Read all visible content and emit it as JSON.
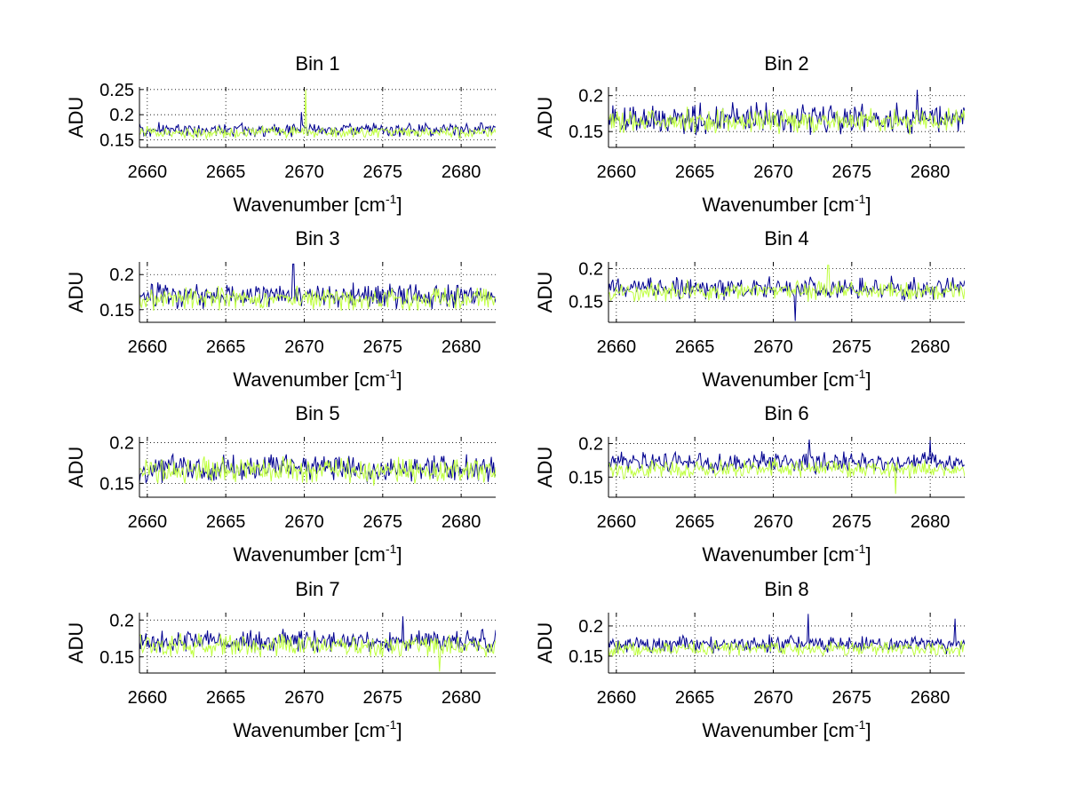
{
  "chart_data": [
    {
      "type": "line",
      "title": "Bin 1",
      "xlabel": "Wavenumber [cm",
      "xlabel_sup": "-1",
      "xlabel_end": "]",
      "ylabel": "ADU",
      "xlim": [
        2659.5,
        2682.2
      ],
      "ylim": [
        0.135,
        0.255
      ],
      "xticks": [
        2660,
        2665,
        2670,
        2675,
        2680
      ],
      "xtick_labels": [
        "2660",
        "2665",
        "2670",
        "2675",
        "2680"
      ],
      "yticks": [
        0.15,
        0.2,
        0.25
      ],
      "ytick_labels": [
        "0.15",
        "0.2",
        "0.25"
      ],
      "grid": true,
      "series": [
        {
          "name": "blue",
          "color": "#00008f",
          "mean": 0.17,
          "amplitude": 0.013,
          "spikes": [
            [
              2669.8,
              0.205
            ]
          ]
        },
        {
          "name": "green",
          "color": "#bfff3f",
          "mean": 0.165,
          "amplitude": 0.011,
          "spikes": [
            [
              2670.1,
              0.25
            ]
          ]
        }
      ]
    },
    {
      "type": "line",
      "title": "Bin 2",
      "xlabel": "Wavenumber [cm",
      "xlabel_sup": "-1",
      "xlabel_end": "]",
      "ylabel": "ADU",
      "xlim": [
        2659.5,
        2682.2
      ],
      "ylim": [
        0.128,
        0.212
      ],
      "xticks": [
        2660,
        2665,
        2670,
        2675,
        2680
      ],
      "xtick_labels": [
        "2660",
        "2665",
        "2670",
        "2675",
        "2680"
      ],
      "yticks": [
        0.15,
        0.2
      ],
      "ytick_labels": [
        "0.15",
        "0.2"
      ],
      "grid": true,
      "series": [
        {
          "name": "blue",
          "color": "#00008f",
          "mean": 0.168,
          "amplitude": 0.02,
          "spikes": [
            [
              2679.2,
              0.208
            ]
          ]
        },
        {
          "name": "green",
          "color": "#bfff3f",
          "mean": 0.165,
          "amplitude": 0.017,
          "spikes": []
        }
      ]
    },
    {
      "type": "line",
      "title": "Bin 3",
      "xlabel": "Wavenumber [cm",
      "xlabel_sup": "-1",
      "xlabel_end": "]",
      "ylabel": "ADU",
      "xlim": [
        2659.5,
        2682.2
      ],
      "ylim": [
        0.132,
        0.218
      ],
      "xticks": [
        2660,
        2665,
        2670,
        2675,
        2680
      ],
      "xtick_labels": [
        "2660",
        "2665",
        "2670",
        "2675",
        "2680"
      ],
      "yticks": [
        0.15,
        0.2
      ],
      "ytick_labels": [
        "0.15",
        "0.2"
      ],
      "grid": true,
      "series": [
        {
          "name": "blue",
          "color": "#00008f",
          "mean": 0.17,
          "amplitude": 0.016,
          "spikes": [
            [
              2669.3,
              0.215
            ]
          ]
        },
        {
          "name": "green",
          "color": "#bfff3f",
          "mean": 0.166,
          "amplitude": 0.015,
          "spikes": []
        }
      ]
    },
    {
      "type": "line",
      "title": "Bin 4",
      "xlabel": "Wavenumber [cm",
      "xlabel_sup": "-1",
      "xlabel_end": "]",
      "ylabel": "ADU",
      "xlim": [
        2659.5,
        2682.2
      ],
      "ylim": [
        0.118,
        0.21
      ],
      "xticks": [
        2660,
        2665,
        2670,
        2675,
        2680
      ],
      "xtick_labels": [
        "2660",
        "2665",
        "2670",
        "2675",
        "2680"
      ],
      "yticks": [
        0.15,
        0.2
      ],
      "ytick_labels": [
        "0.15",
        "0.2"
      ],
      "grid": true,
      "series": [
        {
          "name": "blue",
          "color": "#00008f",
          "mean": 0.17,
          "amplitude": 0.016,
          "spikes": [
            [
              2671.4,
              0.12
            ]
          ]
        },
        {
          "name": "green",
          "color": "#bfff3f",
          "mean": 0.166,
          "amplitude": 0.014,
          "spikes": [
            [
              2673.5,
              0.205
            ]
          ]
        }
      ]
    },
    {
      "type": "line",
      "title": "Bin 5",
      "xlabel": "Wavenumber [cm",
      "xlabel_sup": "-1",
      "xlabel_end": "]",
      "ylabel": "ADU",
      "xlim": [
        2659.5,
        2682.2
      ],
      "ylim": [
        0.133,
        0.207
      ],
      "xticks": [
        2660,
        2665,
        2670,
        2675,
        2680
      ],
      "xtick_labels": [
        "2660",
        "2665",
        "2670",
        "2675",
        "2680"
      ],
      "yticks": [
        0.15,
        0.2
      ],
      "ytick_labels": [
        "0.15",
        "0.2"
      ],
      "grid": true,
      "series": [
        {
          "name": "blue",
          "color": "#00008f",
          "mean": 0.168,
          "amplitude": 0.016,
          "spikes": []
        },
        {
          "name": "green",
          "color": "#bfff3f",
          "mean": 0.165,
          "amplitude": 0.015,
          "spikes": []
        }
      ]
    },
    {
      "type": "line",
      "title": "Bin 6",
      "xlabel": "Wavenumber [cm",
      "xlabel_sup": "-1",
      "xlabel_end": "]",
      "ylabel": "ADU",
      "xlim": [
        2659.5,
        2682.2
      ],
      "ylim": [
        0.12,
        0.21
      ],
      "xticks": [
        2660,
        2665,
        2670,
        2675,
        2680
      ],
      "xtick_labels": [
        "2660",
        "2665",
        "2670",
        "2675",
        "2680"
      ],
      "yticks": [
        0.15,
        0.2
      ],
      "ytick_labels": [
        "0.15",
        "0.2"
      ],
      "grid": true,
      "series": [
        {
          "name": "blue",
          "color": "#00008f",
          "mean": 0.172,
          "amplitude": 0.014,
          "spikes": [
            [
              2672.3,
              0.206
            ],
            [
              2680.0,
              0.205
            ]
          ]
        },
        {
          "name": "green",
          "color": "#bfff3f",
          "mean": 0.162,
          "amplitude": 0.013,
          "spikes": [
            [
              2677.8,
              0.125
            ]
          ]
        }
      ]
    },
    {
      "type": "line",
      "title": "Bin 7",
      "xlabel": "Wavenumber [cm",
      "xlabel_sup": "-1",
      "xlabel_end": "]",
      "ylabel": "ADU",
      "xlim": [
        2659.5,
        2682.2
      ],
      "ylim": [
        0.128,
        0.21
      ],
      "xticks": [
        2660,
        2665,
        2670,
        2675,
        2680
      ],
      "xtick_labels": [
        "2660",
        "2665",
        "2670",
        "2675",
        "2680"
      ],
      "yticks": [
        0.15,
        0.2
      ],
      "ytick_labels": [
        "0.15",
        "0.2"
      ],
      "grid": true,
      "series": [
        {
          "name": "blue",
          "color": "#00008f",
          "mean": 0.172,
          "amplitude": 0.014,
          "spikes": [
            [
              2676.3,
              0.205
            ]
          ]
        },
        {
          "name": "green",
          "color": "#bfff3f",
          "mean": 0.165,
          "amplitude": 0.014,
          "spikes": [
            [
              2678.6,
              0.13
            ]
          ]
        }
      ]
    },
    {
      "type": "line",
      "title": "Bin 8",
      "xlabel": "Wavenumber [cm",
      "xlabel_sup": "-1",
      "xlabel_end": "]",
      "ylabel": "ADU",
      "xlim": [
        2659.5,
        2682.2
      ],
      "ylim": [
        0.122,
        0.222
      ],
      "xticks": [
        2660,
        2665,
        2670,
        2675,
        2680
      ],
      "xtick_labels": [
        "2660",
        "2665",
        "2670",
        "2675",
        "2680"
      ],
      "yticks": [
        0.15,
        0.2
      ],
      "ytick_labels": [
        "0.15",
        "0.2"
      ],
      "grid": true,
      "series": [
        {
          "name": "blue",
          "color": "#00008f",
          "mean": 0.17,
          "amplitude": 0.014,
          "spikes": [
            [
              2672.2,
              0.22
            ],
            [
              2681.6,
              0.212
            ]
          ]
        },
        {
          "name": "green",
          "color": "#bfff3f",
          "mean": 0.162,
          "amplitude": 0.012,
          "spikes": []
        }
      ]
    }
  ]
}
